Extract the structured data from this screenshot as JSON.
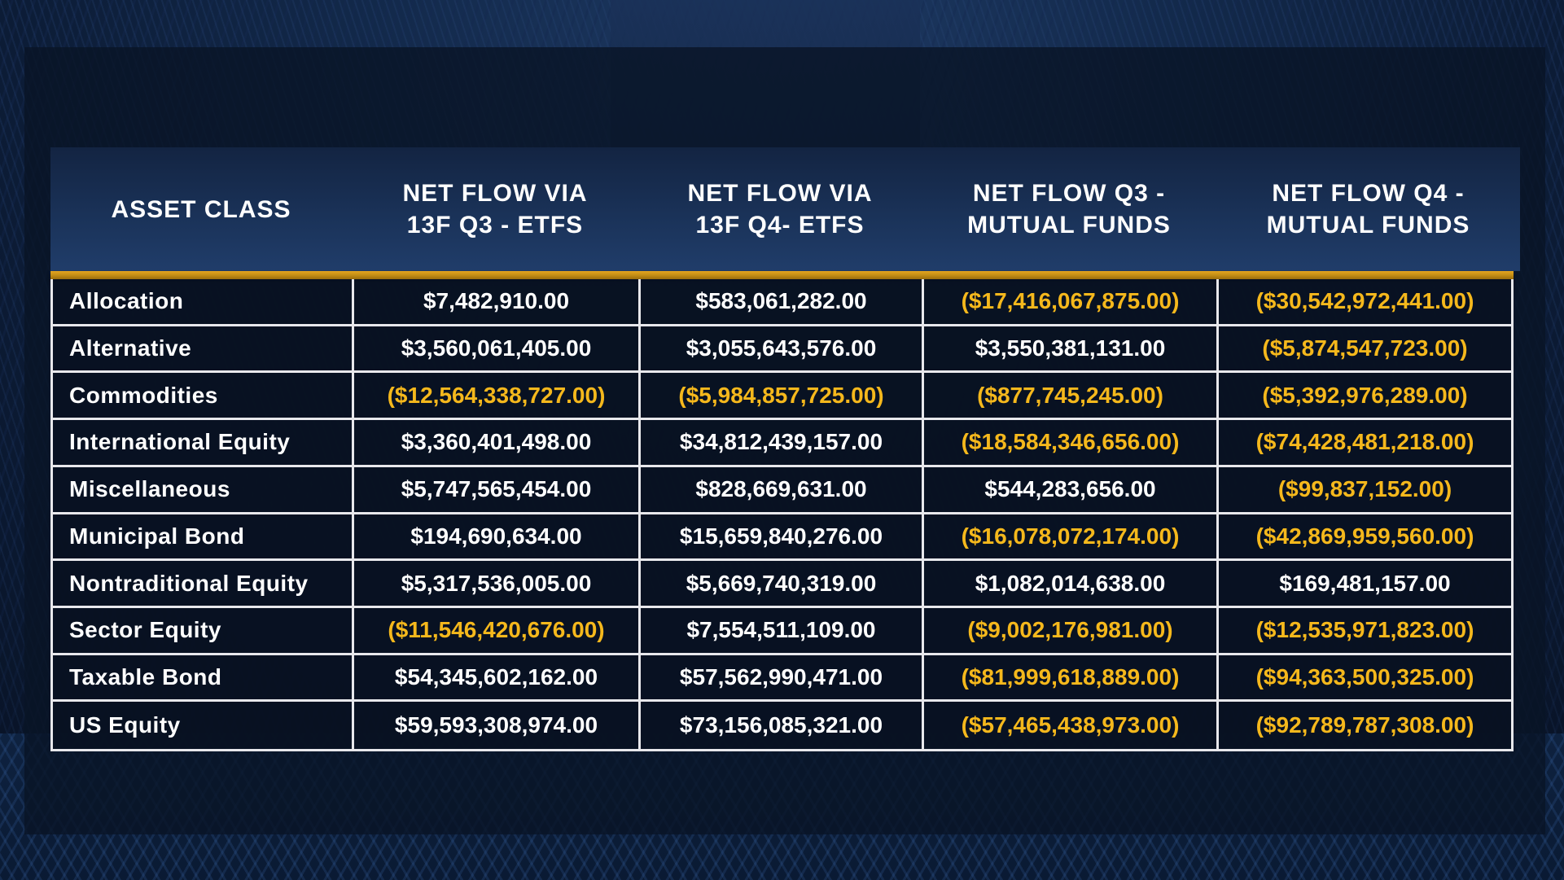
{
  "colors": {
    "header_bg": "#1f3b68",
    "accent_gold": "#e4a51e",
    "negative_text": "#f5b81c",
    "positive_text": "#ffffff",
    "cell_bg": "#0c1628",
    "grid_line": "#e8e8ec"
  },
  "table": {
    "headers": [
      "ASSET CLASS",
      "NET FLOW VIA\n13F Q3 - ETFS",
      "NET FLOW VIA\n13F Q4- ETFS",
      "NET FLOW Q3 -\nMUTUAL FUNDS",
      "NET FLOW Q4 -\nMUTUAL FUNDS"
    ],
    "rows": [
      {
        "asset_class": "Allocation",
        "q3_etfs": "$7,482,910.00",
        "q4_etfs": "$583,061,282.00",
        "q3_mf": "($17,416,067,875.00)",
        "q4_mf": "($30,542,972,441.00)"
      },
      {
        "asset_class": "Alternative",
        "q3_etfs": "$3,560,061,405.00",
        "q4_etfs": "$3,055,643,576.00",
        "q3_mf": "$3,550,381,131.00",
        "q4_mf": "($5,874,547,723.00)"
      },
      {
        "asset_class": "Commodities",
        "q3_etfs": "($12,564,338,727.00)",
        "q4_etfs": "($5,984,857,725.00)",
        "q3_mf": "($877,745,245.00)",
        "q4_mf": "($5,392,976,289.00)"
      },
      {
        "asset_class": "International Equity",
        "q3_etfs": "$3,360,401,498.00",
        "q4_etfs": "$34,812,439,157.00",
        "q3_mf": "($18,584,346,656.00)",
        "q4_mf": "($74,428,481,218.00)"
      },
      {
        "asset_class": "Miscellaneous",
        "q3_etfs": "$5,747,565,454.00",
        "q4_etfs": "$828,669,631.00",
        "q3_mf": "$544,283,656.00",
        "q4_mf": "($99,837,152.00)"
      },
      {
        "asset_class": "Municipal Bond",
        "q3_etfs": "$194,690,634.00",
        "q4_etfs": "$15,659,840,276.00",
        "q3_mf": "($16,078,072,174.00)",
        "q4_mf": "($42,869,959,560.00)"
      },
      {
        "asset_class": "Nontraditional Equity",
        "q3_etfs": "$5,317,536,005.00",
        "q4_etfs": "$5,669,740,319.00",
        "q3_mf": "$1,082,014,638.00",
        "q4_mf": "$169,481,157.00"
      },
      {
        "asset_class": "Sector Equity",
        "q3_etfs": "($11,546,420,676.00)",
        "q4_etfs": "$7,554,511,109.00",
        "q3_mf": "($9,002,176,981.00)",
        "q4_mf": "($12,535,971,823.00)"
      },
      {
        "asset_class": "Taxable Bond",
        "q3_etfs": "$54,345,602,162.00",
        "q4_etfs": "$57,562,990,471.00",
        "q3_mf": "($81,999,618,889.00)",
        "q4_mf": "($94,363,500,325.00)"
      },
      {
        "asset_class": "US Equity",
        "q3_etfs": "$59,593,308,974.00",
        "q4_etfs": "$73,156,085,321.00",
        "q3_mf": "($57,465,438,973.00)",
        "q4_mf": "($92,789,787,308.00)"
      }
    ]
  }
}
